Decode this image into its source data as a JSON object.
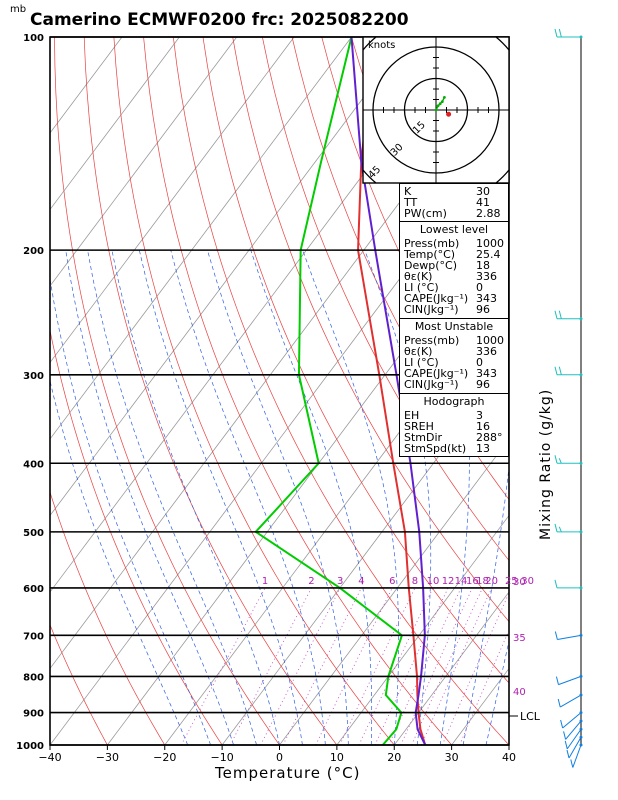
{
  "title": "Camerino ECMWF0200  frc: 2025082200",
  "pressure_unit": "mb",
  "chart_data": {
    "type": "skew-t",
    "title": "Camerino ECMWF0200  frc: 2025082200",
    "xlabel": "Temperature (°C)",
    "ylabel_right": "Mixing Ratio (g/kg)",
    "xlim": [
      -40,
      40
    ],
    "ylim": [
      1000,
      100
    ],
    "x_ticks": [
      -40,
      -30,
      -20,
      -10,
      0,
      10,
      20,
      30,
      40
    ],
    "y_ticks": [
      100,
      200,
      300,
      400,
      500,
      600,
      700,
      800,
      900,
      1000
    ],
    "mixing_ratio_labels": [
      "1",
      "2",
      "3",
      "4",
      "6",
      "8",
      "10",
      "12",
      "14",
      "16",
      "18",
      "20",
      "25",
      "30"
    ],
    "theta_labels": [
      "30",
      "35",
      "40"
    ],
    "lcl_label": "LCL",
    "series": [
      {
        "name": "",
        "color": "#e03030",
        "points": [
          [
            1000,
            25.4
          ],
          [
            950,
            22.5
          ],
          [
            900,
            20
          ],
          [
            850,
            17.5
          ],
          [
            800,
            15
          ],
          [
            700,
            9
          ],
          [
            600,
            2
          ],
          [
            500,
            -6
          ],
          [
            400,
            -17
          ],
          [
            300,
            -31
          ],
          [
            250,
            -40
          ],
          [
            200,
            -51
          ],
          [
            150,
            -62
          ],
          [
            100,
            -76
          ]
        ]
      },
      {
        "name": "",
        "color": "#00cc00",
        "points": [
          [
            1000,
            18
          ],
          [
            950,
            18.3
          ],
          [
            900,
            17
          ],
          [
            850,
            12
          ],
          [
            800,
            10
          ],
          [
            700,
            7
          ],
          [
            600,
            -10
          ],
          [
            500,
            -32
          ],
          [
            400,
            -30
          ],
          [
            300,
            -45
          ],
          [
            200,
            -61
          ],
          [
            150,
            -69
          ],
          [
            100,
            -80
          ]
        ]
      },
      {
        "name": "",
        "color": "#6020d0",
        "points": [
          [
            1000,
            25.4
          ],
          [
            950,
            22
          ],
          [
            900,
            19.5
          ],
          [
            850,
            17.7
          ],
          [
            800,
            15.7
          ],
          [
            700,
            11
          ],
          [
            600,
            4.5
          ],
          [
            500,
            -3.5
          ],
          [
            400,
            -14
          ],
          [
            300,
            -28
          ],
          [
            250,
            -37
          ],
          [
            200,
            -48
          ],
          [
            150,
            -62
          ],
          [
            100,
            -80
          ]
        ]
      }
    ],
    "wind_barbs": [
      {
        "p": 1000,
        "speed": 10,
        "dir": 200
      },
      {
        "p": 975,
        "speed": 10,
        "dir": 210
      },
      {
        "p": 950,
        "speed": 10,
        "dir": 215
      },
      {
        "p": 925,
        "speed": 10,
        "dir": 220
      },
      {
        "p": 900,
        "speed": 10,
        "dir": 230
      },
      {
        "p": 850,
        "speed": 10,
        "dir": 240
      },
      {
        "p": 800,
        "speed": 10,
        "dir": 250
      },
      {
        "p": 700,
        "speed": 10,
        "dir": 260
      },
      {
        "p": 600,
        "speed": 10,
        "dir": 270
      },
      {
        "p": 500,
        "speed": 15,
        "dir": 270
      },
      {
        "p": 400,
        "speed": 15,
        "dir": 270
      },
      {
        "p": 300,
        "speed": 20,
        "dir": 270
      },
      {
        "p": 250,
        "speed": 20,
        "dir": 270
      },
      {
        "p": 100,
        "speed": 20,
        "dir": 270
      }
    ],
    "hodograph": {
      "units_label": "knots",
      "ring_labels": [
        "15",
        "30",
        "45"
      ],
      "points": [
        [
          0,
          0
        ],
        [
          1,
          2
        ],
        [
          2,
          3
        ],
        [
          3,
          4
        ],
        [
          4,
          6
        ]
      ],
      "storm_motion": [
        6,
        -2
      ]
    }
  },
  "indices": {
    "general": [
      {
        "label": "K",
        "value": "30"
      },
      {
        "label": "TT",
        "value": "41"
      },
      {
        "label": "PW(cm)",
        "value": "2.88"
      }
    ],
    "lowest_header": "Lowest level",
    "lowest": [
      {
        "label": "Press(mb)",
        "value": "1000"
      },
      {
        "label": "Temp(°C)",
        "value": "25.4"
      },
      {
        "label": "Dewp(°C)",
        "value": "18"
      },
      {
        "label": "θε(K)",
        "value": "336"
      },
      {
        "label": "LI (°C)",
        "value": "0"
      },
      {
        "label": "CAPE(Jkg⁻¹)",
        "value": "343"
      },
      {
        "label": "CIN(Jkg⁻¹)",
        "value": "96"
      }
    ],
    "unstable_header": "Most Unstable",
    "unstable": [
      {
        "label": "Press(mb)",
        "value": "1000"
      },
      {
        "label": "θε(K)",
        "value": "336"
      },
      {
        "label": "LI (°C)",
        "value": "0"
      },
      {
        "label": "CAPE(Jkg⁻¹)",
        "value": "343"
      },
      {
        "label": "CIN(Jkg⁻¹)",
        "value": "96"
      }
    ],
    "hodo_header": "Hodograph",
    "hodo": [
      {
        "label": "EH",
        "value": "3"
      },
      {
        "label": "SREH",
        "value": "16"
      },
      {
        "label": "StmDir",
        "value": "288°"
      },
      {
        "label": "StmSpd(kt)",
        "value": "13"
      }
    ]
  }
}
